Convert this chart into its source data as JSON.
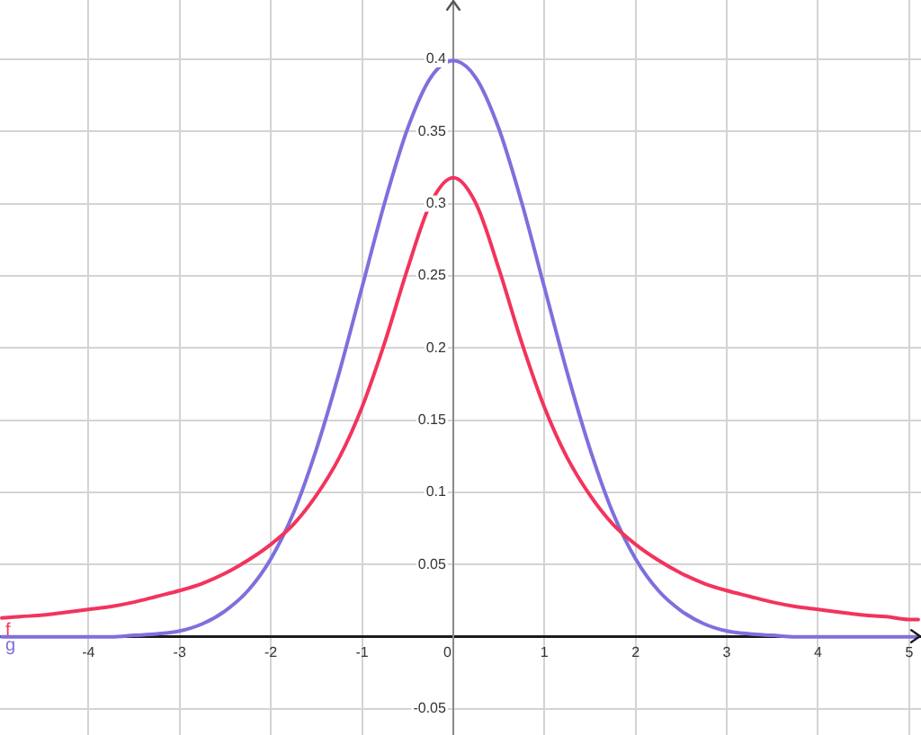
{
  "chart_data": {
    "type": "line",
    "x": [
      -4.95,
      -4.75,
      -4.5,
      -4.25,
      -4,
      -3.75,
      -3.5,
      -3.25,
      -3,
      -2.75,
      -2.5,
      -2.25,
      -2,
      -1.75,
      -1.5,
      -1.25,
      -1,
      -0.75,
      -0.5,
      -0.25,
      0,
      0.25,
      0.5,
      0.75,
      1,
      1.25,
      1.5,
      1.75,
      2,
      2.25,
      2.5,
      2.75,
      3,
      3.25,
      3.5,
      3.75,
      4,
      4.25,
      4.5,
      4.75,
      5,
      5.1
    ],
    "series": [
      {
        "name": "f",
        "color": "#f2345c",
        "values": [
          0.013,
          0.014,
          0.015,
          0.017,
          0.019,
          0.021,
          0.024,
          0.028,
          0.032,
          0.037,
          0.044,
          0.053,
          0.064,
          0.078,
          0.098,
          0.124,
          0.159,
          0.204,
          0.255,
          0.3,
          0.318,
          0.3,
          0.255,
          0.204,
          0.159,
          0.124,
          0.098,
          0.078,
          0.064,
          0.053,
          0.044,
          0.037,
          0.032,
          0.028,
          0.024,
          0.021,
          0.019,
          0.017,
          0.015,
          0.014,
          0.012,
          0.012
        ]
      },
      {
        "name": "g",
        "color": "#7d70dd",
        "values": [
          0,
          0,
          0,
          0,
          0,
          0,
          0.001,
          0.002,
          0.004,
          0.009,
          0.018,
          0.032,
          0.054,
          0.086,
          0.13,
          0.183,
          0.242,
          0.301,
          0.352,
          0.387,
          0.399,
          0.387,
          0.352,
          0.301,
          0.242,
          0.183,
          0.13,
          0.086,
          0.054,
          0.032,
          0.018,
          0.009,
          0.004,
          0.002,
          0.001,
          0,
          0,
          0,
          0,
          0,
          0,
          0
        ]
      }
    ],
    "xlim": [
      -4.97,
      5.13
    ],
    "ylim": [
      -0.068,
      0.441
    ],
    "xticks": [
      -4,
      -3,
      -2,
      -1,
      0,
      1,
      2,
      3,
      4,
      5
    ],
    "yticks": [
      -0.05,
      0.05,
      0.1,
      0.15,
      0.2,
      0.25,
      0.3,
      0.35,
      0.4
    ],
    "grid": true,
    "marker": "none",
    "line_style": "solid"
  }
}
